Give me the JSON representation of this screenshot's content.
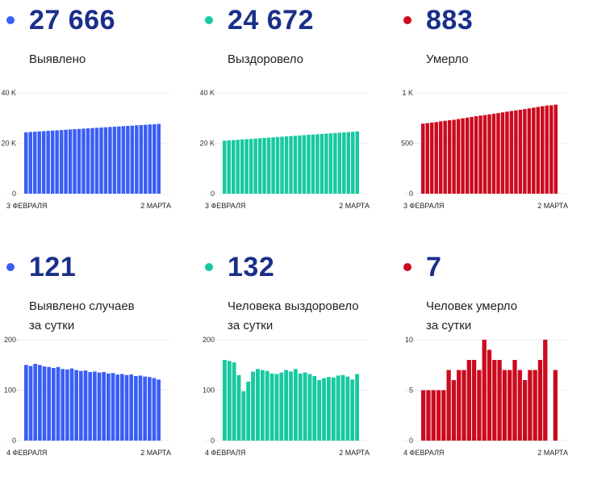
{
  "colors": {
    "blue": "#3a5ef5",
    "teal": "#17c9a0",
    "red": "#cc0a1e",
    "number": "#1a2f8a"
  },
  "panels": [
    {
      "number": "27 666",
      "label_lines": [
        "Выявлено"
      ],
      "color": "#3a5ef5",
      "chart_data": {
        "type": "bar",
        "yticks": [
          "40 K",
          "20 K",
          "0"
        ],
        "ylim": [
          0,
          40000
        ],
        "xlabel_left": "3 ФЕВРАЛЯ",
        "xlabel_right": "2 МАРТА",
        "values": [
          24300,
          24450,
          24560,
          24680,
          24790,
          24900,
          25000,
          25120,
          25230,
          25350,
          25460,
          25580,
          25690,
          25800,
          25900,
          26010,
          26120,
          26230,
          26340,
          26450,
          26560,
          26660,
          26770,
          26880,
          26990,
          27100,
          27220,
          27330,
          27440,
          27550,
          27666
        ]
      }
    },
    {
      "number": "24 672",
      "label_lines": [
        "Выздоровело"
      ],
      "color": "#17c9a0",
      "chart_data": {
        "type": "bar",
        "yticks": [
          "40 K",
          "20 K",
          "0"
        ],
        "ylim": [
          0,
          40000
        ],
        "xlabel_left": "3 ФЕВРАЛЯ",
        "xlabel_right": "2 МАРТА",
        "values": [
          21000,
          21130,
          21250,
          21380,
          21500,
          21620,
          21740,
          21860,
          21990,
          22110,
          22230,
          22350,
          22480,
          22600,
          22720,
          22850,
          22970,
          23090,
          23210,
          23340,
          23460,
          23580,
          23700,
          23820,
          23940,
          24060,
          24180,
          24300,
          24430,
          24550,
          24672
        ]
      }
    },
    {
      "number": "883",
      "label_lines": [
        "Умерло"
      ],
      "color": "#cc0a1e",
      "chart_data": {
        "type": "bar",
        "yticks": [
          "1 K",
          "500",
          "0"
        ],
        "ylim": [
          0,
          1000
        ],
        "xlabel_left": "3 ФЕВРАЛЯ",
        "xlabel_right": "2 МАРТА",
        "values": [
          695,
          700,
          705,
          710,
          717,
          723,
          728,
          733,
          740,
          747,
          754,
          761,
          768,
          774,
          780,
          786,
          793,
          799,
          806,
          813,
          820,
          826,
          832,
          839,
          846,
          853,
          860,
          867,
          874,
          876,
          883
        ]
      }
    },
    {
      "number": "121",
      "label_lines": [
        "Выявлено случаев",
        "за сутки"
      ],
      "color": "#3a5ef5",
      "chart_data": {
        "type": "bar",
        "yticks": [
          "200",
          "100",
          "0"
        ],
        "ylim": [
          0,
          200
        ],
        "xlabel_left": "4 ФЕВРАЛЯ",
        "xlabel_right": "2 МАРТА",
        "values": [
          150,
          148,
          152,
          150,
          147,
          146,
          144,
          146,
          142,
          141,
          143,
          140,
          138,
          139,
          136,
          137,
          135,
          136,
          133,
          134,
          131,
          132,
          130,
          131,
          128,
          129,
          127,
          126,
          124,
          121
        ]
      }
    },
    {
      "number": "132",
      "label_lines": [
        "Человека выздоровело",
        "за сутки"
      ],
      "color": "#17c9a0",
      "chart_data": {
        "type": "bar",
        "yticks": [
          "200",
          "100",
          "0"
        ],
        "ylim": [
          0,
          200
        ],
        "xlabel_left": "4 ФЕВРАЛЯ",
        "xlabel_right": "2 МАРТА",
        "values": [
          160,
          158,
          155,
          130,
          98,
          117,
          137,
          142,
          140,
          138,
          133,
          132,
          135,
          140,
          137,
          142,
          133,
          135,
          132,
          128,
          120,
          124,
          126,
          125,
          129,
          130,
          127,
          121,
          132
        ]
      }
    },
    {
      "number": "7",
      "label_lines": [
        "Человек умерло",
        "за сутки"
      ],
      "color": "#cc0a1e",
      "chart_data": {
        "type": "bar",
        "yticks": [
          "10",
          "5",
          "0"
        ],
        "ylim": [
          0,
          10
        ],
        "xlabel_left": "4 ФЕВРАЛЯ",
        "xlabel_right": "2 МАРТА",
        "values": [
          5,
          5,
          5,
          5,
          5,
          7,
          6,
          7,
          7,
          8,
          8,
          7,
          10,
          9,
          8,
          8,
          7,
          7,
          8,
          7,
          6,
          7,
          7,
          8,
          10,
          0,
          7
        ]
      }
    }
  ]
}
